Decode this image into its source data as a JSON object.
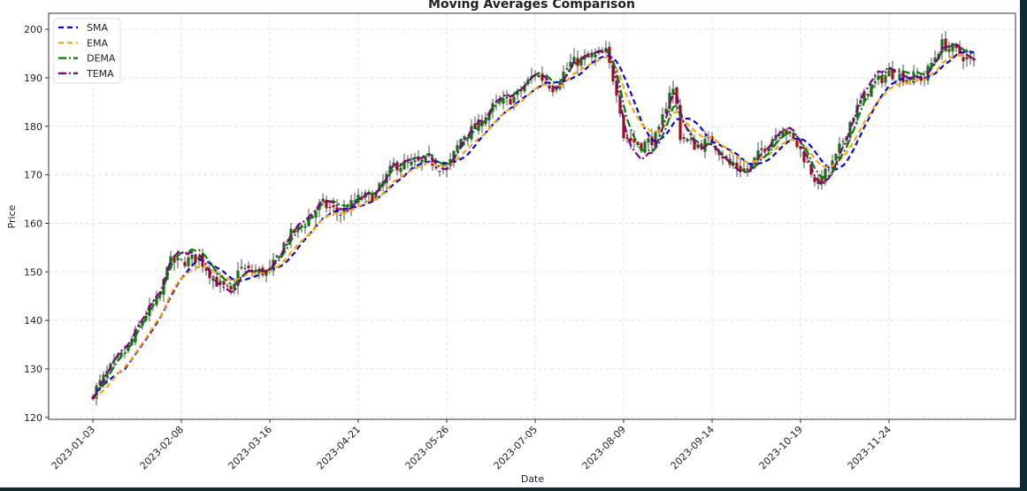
{
  "chart_data": {
    "type": "candlestick+line",
    "title": "Moving Averages Comparison",
    "xlabel": "Date",
    "ylabel": "Price",
    "ylim": [
      119.6,
      203.3
    ],
    "yticks": [
      120,
      130,
      140,
      150,
      160,
      170,
      180,
      190,
      200
    ],
    "xticks": [
      "2023-01-03",
      "2023-02-08",
      "2023-03-16",
      "2023-04-21",
      "2023-05-26",
      "2023-07-05",
      "2023-08-09",
      "2023-09-14",
      "2023-10-19",
      "2023-11-24"
    ],
    "last_date": "2023-12-28",
    "grid": true,
    "legend_position": "top-left",
    "candle_colors": {
      "up": "#1e6b1e",
      "down": "#a01010"
    },
    "approx_close_path": [
      [
        "2023-01-03",
        125
      ],
      [
        "2023-01-10",
        130
      ],
      [
        "2023-01-17",
        134
      ],
      [
        "2023-01-24",
        141
      ],
      [
        "2023-01-31",
        145
      ],
      [
        "2023-02-02",
        152
      ],
      [
        "2023-02-08",
        152
      ],
      [
        "2023-02-15",
        153
      ],
      [
        "2023-02-22",
        148
      ],
      [
        "2023-02-27",
        146
      ],
      [
        "2023-03-01",
        145
      ],
      [
        "2023-03-03",
        151
      ],
      [
        "2023-03-08",
        150
      ],
      [
        "2023-03-16",
        150
      ],
      [
        "2023-03-23",
        157
      ],
      [
        "2023-03-30",
        160
      ],
      [
        "2023-04-06",
        164
      ],
      [
        "2023-04-14",
        162
      ],
      [
        "2023-04-21",
        165
      ],
      [
        "2023-04-28",
        166
      ],
      [
        "2023-05-05",
        172
      ],
      [
        "2023-05-12",
        172
      ],
      [
        "2023-05-19",
        173
      ],
      [
        "2023-05-26",
        171
      ],
      [
        "2023-06-02",
        178
      ],
      [
        "2023-06-09",
        180
      ],
      [
        "2023-06-16",
        184
      ],
      [
        "2023-06-26",
        186
      ],
      [
        "2023-07-05",
        191
      ],
      [
        "2023-07-12",
        188
      ],
      [
        "2023-07-19",
        193
      ],
      [
        "2023-07-26",
        194
      ],
      [
        "2023-08-02",
        195
      ],
      [
        "2023-08-07",
        186
      ],
      [
        "2023-08-09",
        178
      ],
      [
        "2023-08-16",
        176
      ],
      [
        "2023-08-23",
        178
      ],
      [
        "2023-08-28",
        188
      ],
      [
        "2023-08-30",
        187
      ],
      [
        "2023-09-01",
        178
      ],
      [
        "2023-09-07",
        176
      ],
      [
        "2023-09-14",
        177
      ],
      [
        "2023-09-21",
        172
      ],
      [
        "2023-09-28",
        171
      ],
      [
        "2023-10-05",
        176
      ],
      [
        "2023-10-12",
        180
      ],
      [
        "2023-10-19",
        175
      ],
      [
        "2023-10-26",
        168
      ],
      [
        "2023-11-02",
        173
      ],
      [
        "2023-11-09",
        182
      ],
      [
        "2023-11-16",
        188
      ],
      [
        "2023-11-24",
        191
      ],
      [
        "2023-12-01",
        190
      ],
      [
        "2023-12-08",
        190
      ],
      [
        "2023-12-15",
        197
      ],
      [
        "2023-12-22",
        195
      ],
      [
        "2023-12-28",
        193
      ]
    ],
    "series": [
      {
        "name": "SMA",
        "color": "#0000ff",
        "style": "dashed"
      },
      {
        "name": "EMA",
        "color": "#ffa500",
        "style": "dashed"
      },
      {
        "name": "DEMA",
        "color": "#008000",
        "style": "dash-dot"
      },
      {
        "name": "TEMA",
        "color": "#800080",
        "style": "dash-dot"
      }
    ]
  }
}
